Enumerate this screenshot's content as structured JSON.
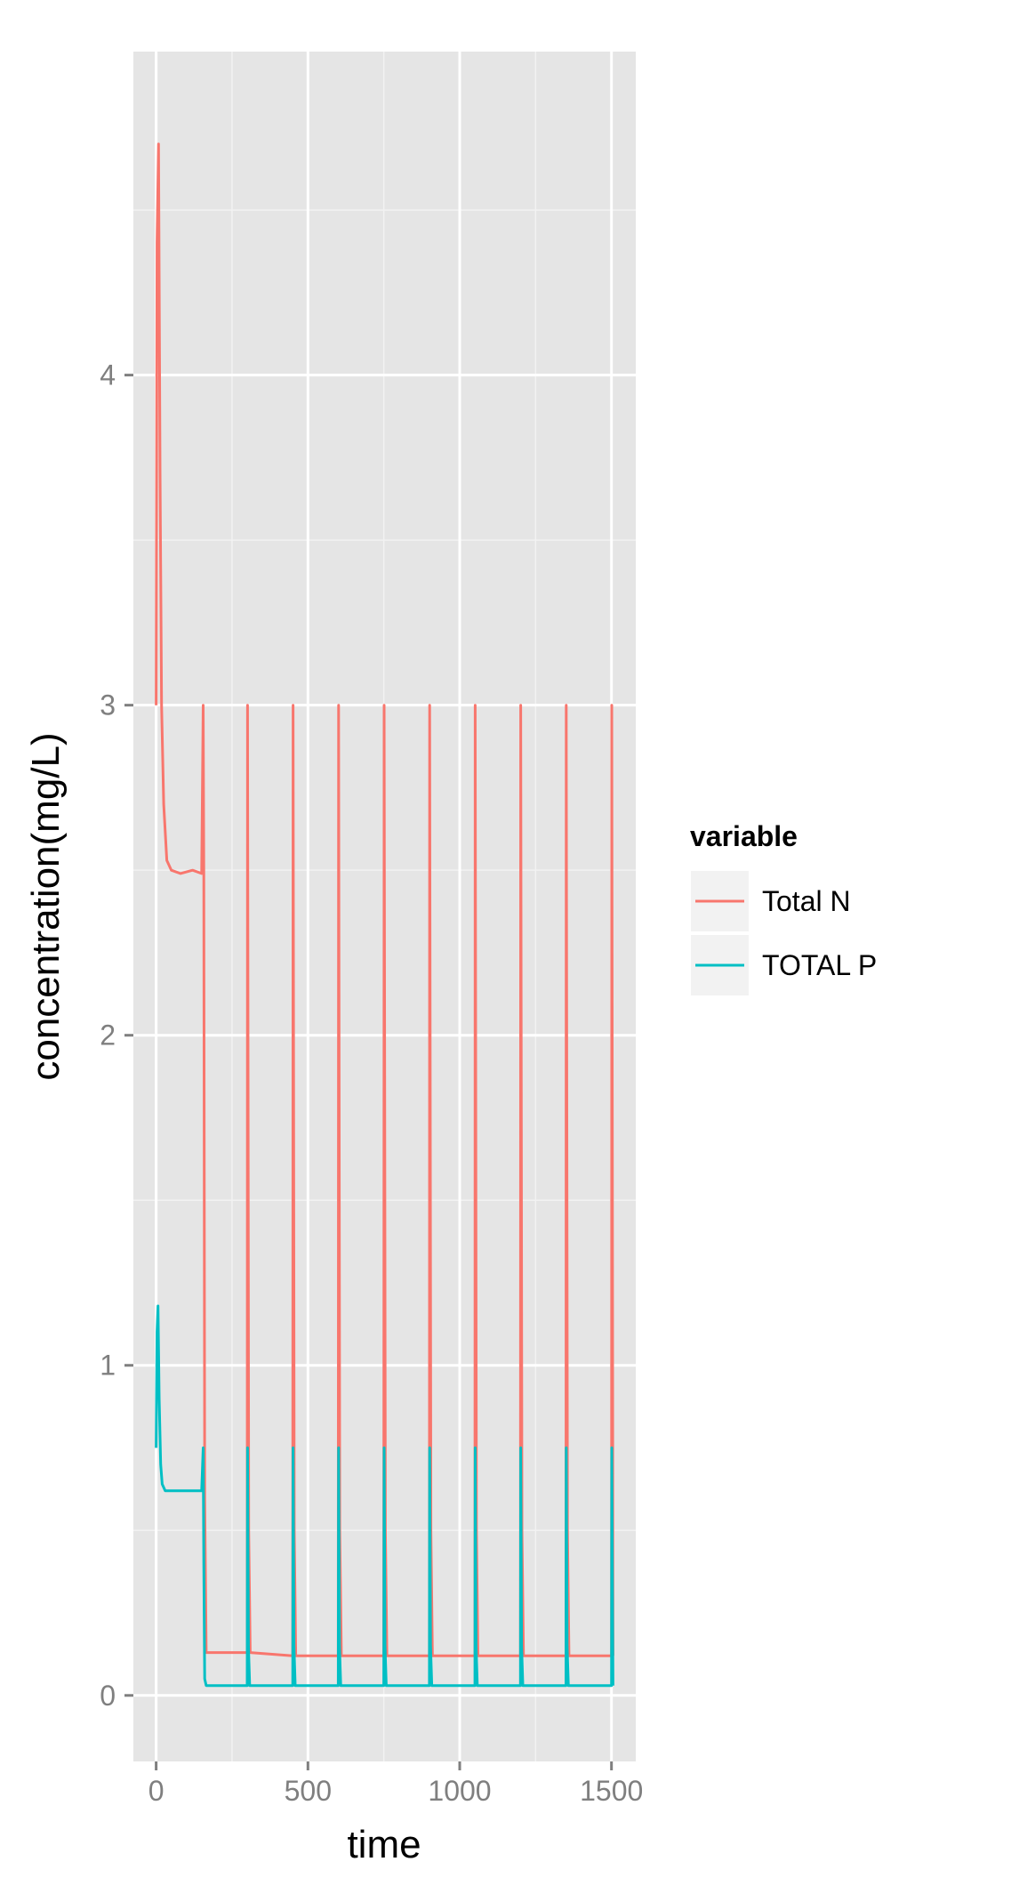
{
  "chart_data": {
    "type": "line",
    "title": "",
    "xlabel": "time",
    "ylabel": "concentration(mg/L)",
    "xlim": [
      -75,
      1580
    ],
    "ylim": [
      -0.2,
      4.98
    ],
    "x_ticks": [
      0,
      500,
      1000,
      1500
    ],
    "x_tick_labels": [
      "0",
      "500",
      "1000",
      "1500"
    ],
    "y_ticks": [
      0,
      1,
      2,
      3,
      4
    ],
    "y_tick_labels": [
      "0",
      "1",
      "2",
      "3",
      "4"
    ],
    "grid": true,
    "legend": {
      "title": "variable",
      "position": "right"
    },
    "series": [
      {
        "name": "Total N",
        "color": "#F8766D",
        "x": [
          0,
          3,
          8,
          13,
          18,
          25,
          35,
          50,
          80,
          120,
          150,
          155,
          157,
          160,
          165,
          180,
          300,
          301,
          305,
          310,
          450,
          451,
          455,
          460,
          600,
          601,
          605,
          610,
          750,
          751,
          755,
          760,
          900,
          901,
          905,
          910,
          1050,
          1051,
          1055,
          1060,
          1200,
          1201,
          1205,
          1210,
          1350,
          1351,
          1355,
          1360,
          1500,
          1501,
          1505
        ],
        "values": [
          3.0,
          4.4,
          4.7,
          3.7,
          3.0,
          2.7,
          2.53,
          2.5,
          2.49,
          2.5,
          2.49,
          3.0,
          2.5,
          0.6,
          0.13,
          0.13,
          0.13,
          3.0,
          0.5,
          0.13,
          0.12,
          3.0,
          0.5,
          0.12,
          0.12,
          3.0,
          0.5,
          0.12,
          0.12,
          3.0,
          0.5,
          0.12,
          0.12,
          3.0,
          0.5,
          0.12,
          0.12,
          3.0,
          0.5,
          0.12,
          0.12,
          3.0,
          0.5,
          0.12,
          0.12,
          3.0,
          0.5,
          0.12,
          0.12,
          3.0,
          0.12
        ]
      },
      {
        "name": "TOTAL P",
        "color": "#00BFC4",
        "x": [
          0,
          3,
          6,
          10,
          15,
          20,
          30,
          50,
          100,
          150,
          155,
          157,
          160,
          165,
          180,
          300,
          301,
          304,
          308,
          450,
          451,
          454,
          458,
          600,
          601,
          604,
          608,
          750,
          751,
          754,
          758,
          900,
          901,
          904,
          908,
          1050,
          1051,
          1054,
          1058,
          1200,
          1201,
          1204,
          1208,
          1350,
          1351,
          1354,
          1358,
          1500,
          1501,
          1505
        ],
        "values": [
          0.75,
          1.1,
          1.18,
          0.9,
          0.7,
          0.64,
          0.62,
          0.62,
          0.62,
          0.62,
          0.75,
          0.4,
          0.05,
          0.03,
          0.03,
          0.03,
          0.75,
          0.15,
          0.03,
          0.03,
          0.75,
          0.15,
          0.03,
          0.03,
          0.75,
          0.15,
          0.03,
          0.03,
          0.75,
          0.15,
          0.03,
          0.03,
          0.75,
          0.15,
          0.03,
          0.03,
          0.75,
          0.15,
          0.03,
          0.03,
          0.75,
          0.15,
          0.03,
          0.03,
          0.75,
          0.15,
          0.03,
          0.03,
          0.75,
          0.03
        ]
      }
    ]
  }
}
